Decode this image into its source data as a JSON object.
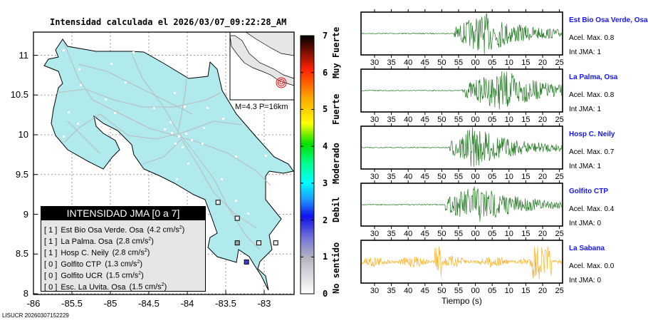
{
  "title": "Intensidad calculada el 2026/03/07_09:22:28_AM",
  "footer": "LISUCR 20260307152229",
  "chart_data": [
    {
      "type": "map",
      "title": "Intensidad calculada el 2026/03/07_09:22:28_AM",
      "xlim": [
        -86,
        -82.6
      ],
      "ylim": [
        8,
        11.3
      ],
      "x_ticks": [
        "-86",
        "-85.5",
        "-85",
        "-84.5",
        "-84",
        "-83.5",
        "-83"
      ],
      "y_ticks": [
        "8",
        "8.5",
        "9",
        "9.5",
        "10",
        "10.5",
        "11"
      ],
      "grid": true,
      "inset_label": "M=4.3 P=16km",
      "legend": {
        "title": "INTENSIDAD JMA [0 a 7]",
        "entries": [
          {
            "int": "[ 1 ]",
            "name": "Est Bio Osa Verde. Osa",
            "acc": "(4.2 cm/s",
            "sup": "2",
            "close": ")"
          },
          {
            "int": "[ 1 ]",
            "name": "La Palma. Osa",
            "acc": "(2.8 cm/s",
            "sup": "2",
            "close": ")"
          },
          {
            "int": "[ 1 ]",
            "name": "Hosp C. Neily",
            "acc": "(2.8 cm/s",
            "sup": "2",
            "close": ")"
          },
          {
            "int": "[ 0 ]",
            "name": "Golfito CTP",
            "acc": "(1.3 cm/s",
            "sup": "2",
            "close": ")"
          },
          {
            "int": "[ 0 ]",
            "name": "Golfito UCR",
            "acc": "(1.5 cm/s",
            "sup": "2",
            "close": ")"
          },
          {
            "int": "[ 0 ]",
            "name": "Esc. La Uvita. Osa",
            "acc": "(1.5 cm/s",
            "sup": "2",
            "close": ")"
          }
        ]
      },
      "stations_plotted": [
        {
          "lon": -83.6,
          "lat": 9.15,
          "int": 1
        },
        {
          "lon": -83.35,
          "lat": 8.95,
          "int": 1
        },
        {
          "lon": -83.35,
          "lat": 8.64,
          "int": 1.2
        },
        {
          "lon": -83.07,
          "lat": 8.64,
          "int": 1
        },
        {
          "lon": -82.85,
          "lat": 8.64,
          "int": 1
        },
        {
          "lon": -83.23,
          "lat": 8.4,
          "int": 2
        }
      ]
    },
    {
      "type": "colorbar",
      "range": [
        0,
        7
      ],
      "ticks": [
        "0",
        "1",
        "2",
        "3",
        "4",
        "5",
        "6",
        "7"
      ],
      "labels": [
        "No sentido",
        "Debil",
        "Moderado",
        "Fuerte",
        "Muy Fuerte"
      ]
    },
    {
      "type": "line",
      "xlabel": "Tiempo (s)",
      "x_ticks": [
        "30",
        "35",
        "40",
        "45",
        "50",
        "55",
        "00",
        "05",
        "10",
        "15",
        "20",
        "25"
      ],
      "series": [
        {
          "name": "Est Bio Osa Verde, Osa",
          "acel": "Acel. Max. 0.8",
          "int": "Int JMA: 1",
          "color": "#006400",
          "onset_tick": 53.5,
          "peak_tick": 62
        },
        {
          "name": "La Palma, Osa",
          "acel": "Acel. Max. 0.8",
          "int": "Int JMA: 1",
          "color": "#006400",
          "onset_tick": 56,
          "peak_tick": 68
        },
        {
          "name": "Hosp C. Neily",
          "acel": "Acel. Max. 0.7",
          "int": "Int JMA: 1",
          "color": "#006400",
          "onset_tick": 52,
          "peak_tick": 59
        },
        {
          "name": "Golfito CTP",
          "acel": "Acel. Max. 0.4",
          "int": "Int JMA: 0",
          "color": "#006400",
          "onset_tick": 51,
          "peak_tick": 60
        },
        {
          "name": "La Sabana",
          "acel": "Acel. Max. 0.0",
          "int": "Int JMA: 0",
          "color": "#ffa500",
          "onset_tick": 27,
          "peak_tick": 49
        }
      ]
    }
  ]
}
